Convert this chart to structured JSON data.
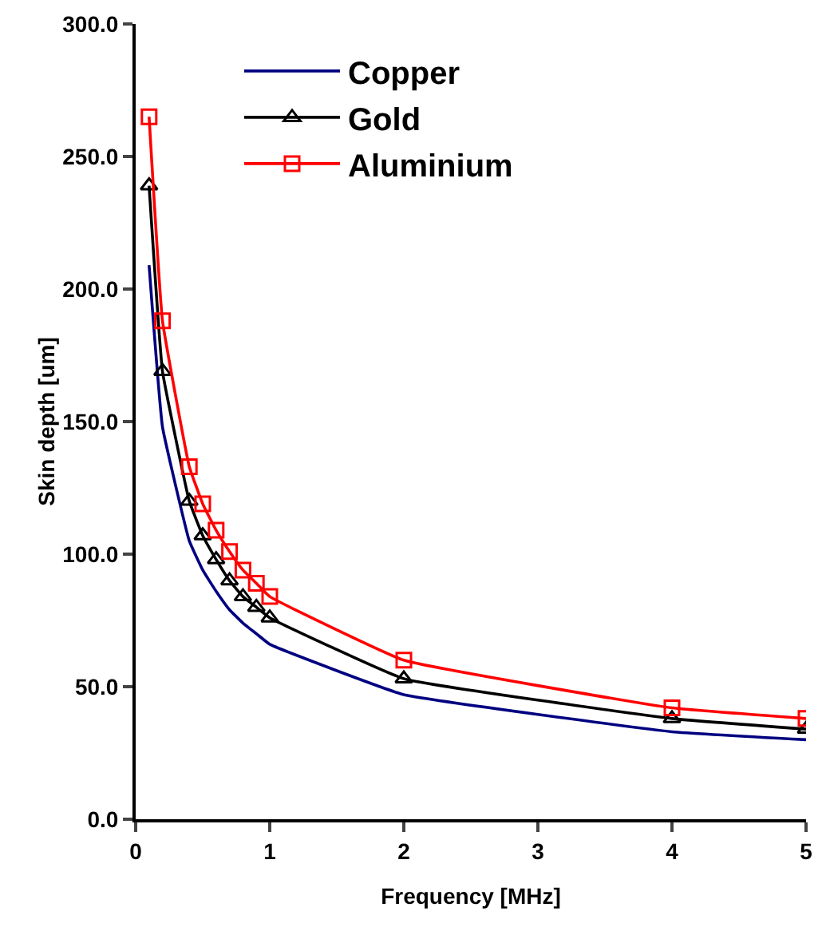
{
  "chart_data": {
    "type": "line",
    "xlabel": "Frequency [MHz]",
    "ylabel": "Skin depth [um]",
    "x": [
      0.1,
      0.2,
      0.4,
      0.5,
      0.6,
      0.7,
      0.8,
      0.9,
      1,
      2,
      4,
      5
    ],
    "series": [
      {
        "name": "Copper",
        "color": "#000080",
        "marker": "none",
        "values": [
          209,
          148,
          105,
          94,
          86,
          79,
          74,
          70,
          66,
          47,
          33,
          30
        ]
      },
      {
        "name": "Gold",
        "color": "#000000",
        "marker": "triangle",
        "values": [
          239,
          169,
          120,
          107,
          98,
          90,
          84,
          80,
          76,
          53,
          38,
          34
        ]
      },
      {
        "name": "Aluminium",
        "color": "#ff0000",
        "marker": "square",
        "values": [
          265,
          188,
          133,
          119,
          109,
          101,
          94,
          89,
          84,
          60,
          42,
          38
        ]
      }
    ],
    "xlim": [
      0,
      5
    ],
    "xticks": [
      0,
      1,
      2,
      3,
      4,
      5
    ],
    "ylim": [
      0,
      300
    ],
    "yticks": [
      {
        "value": 0,
        "label": "0.0"
      },
      {
        "value": 50,
        "label": "50.0"
      },
      {
        "value": 100,
        "label": "100.0"
      },
      {
        "value": 150,
        "label": "150.0"
      },
      {
        "value": 200,
        "label": "200.0"
      },
      {
        "value": 250,
        "label": "250.0"
      },
      {
        "value": 300,
        "label": "300.0"
      }
    ],
    "grid": false,
    "legend": "top",
    "line_style": "solid"
  }
}
